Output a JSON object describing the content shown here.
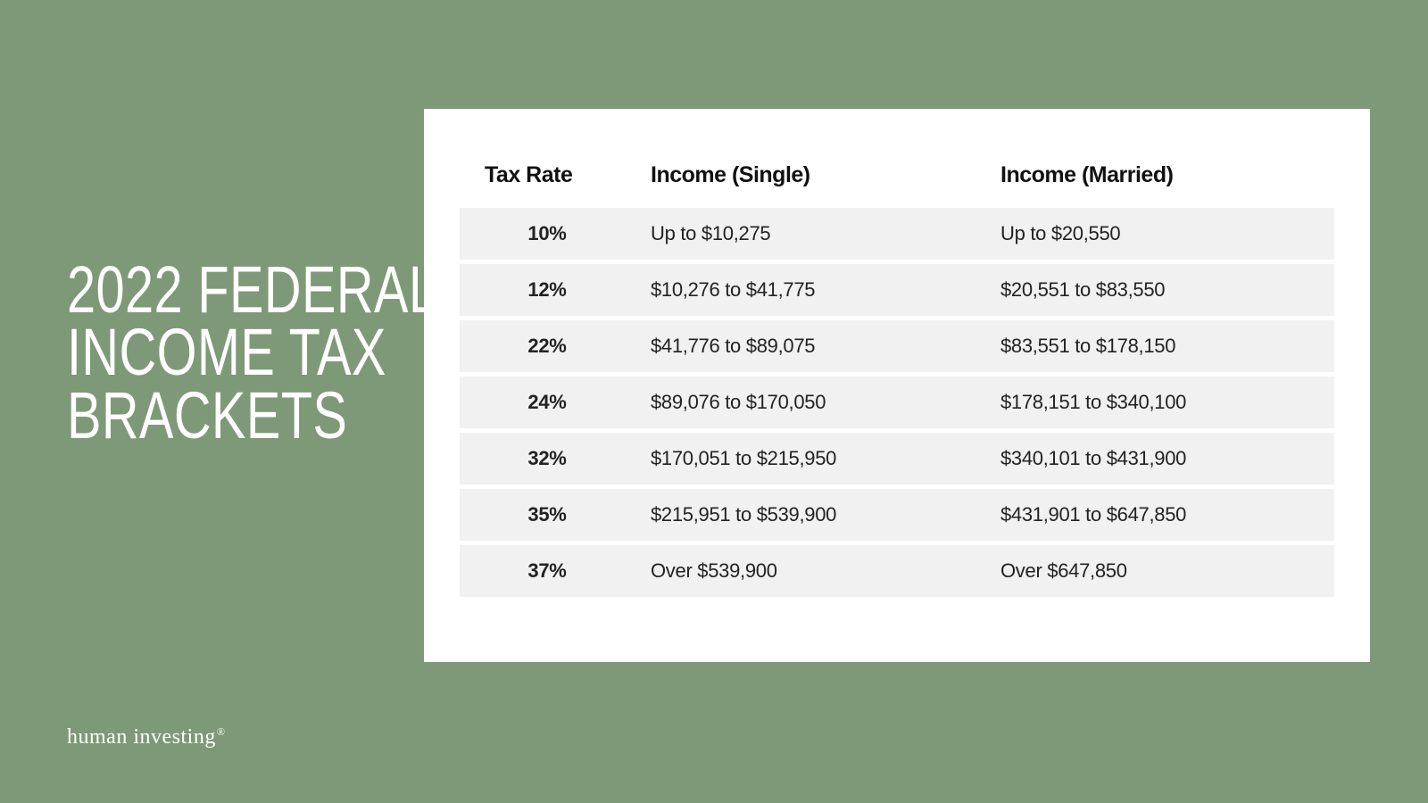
{
  "background_color": "#7e9977",
  "card_background": "#ffffff",
  "row_background": "#f1f1f1",
  "text_color_light": "#ffffff",
  "text_color_dark": "#111111",
  "title": {
    "line1": "2022 FEDERAL",
    "line2": "INCOME TAX",
    "line3": "BRACKETS",
    "fontsize": 74,
    "color": "#ffffff"
  },
  "brand": {
    "text": "human investing",
    "registered": "®",
    "fontsize": 24
  },
  "table": {
    "type": "table",
    "header_fontsize": 25,
    "cell_fontsize": 22,
    "columns": [
      "Tax Rate",
      "Income (Single)",
      "Income (Married)"
    ],
    "rows": [
      {
        "rate": "10%",
        "single": "Up to $10,275",
        "married": "Up to $20,550"
      },
      {
        "rate": "12%",
        "single": "$10,276 to $41,775",
        "married": "$20,551 to $83,550"
      },
      {
        "rate": "22%",
        "single": "$41,776 to $89,075",
        "married": "$83,551 to $178,150"
      },
      {
        "rate": "24%",
        "single": "$89,076 to $170,050",
        "married": "$178,151 to $340,100"
      },
      {
        "rate": "32%",
        "single": "$170,051 to $215,950",
        "married": "$340,101 to $431,900"
      },
      {
        "rate": "35%",
        "single": "$215,951 to $539,900",
        "married": "$431,901 to $647,850"
      },
      {
        "rate": "37%",
        "single": "Over $539,900",
        "married": "Over $647,850"
      }
    ]
  }
}
